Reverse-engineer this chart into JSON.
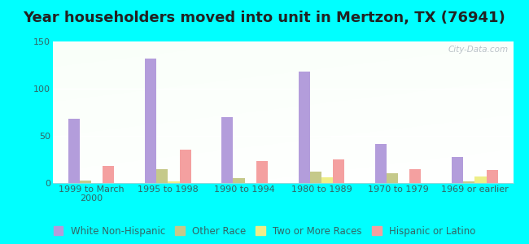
{
  "title": "Year householders moved into unit in Mertzon, TX (76941)",
  "categories": [
    "1999 to March\n2000",
    "1995 to 1998",
    "1990 to 1994",
    "1980 to 1989",
    "1970 to 1979",
    "1969 or earlier"
  ],
  "series": {
    "White Non-Hispanic": [
      68,
      132,
      70,
      118,
      41,
      28
    ],
    "Other Race": [
      3,
      15,
      5,
      12,
      10,
      2
    ],
    "Two or More Races": [
      0,
      2,
      0,
      6,
      0,
      7
    ],
    "Hispanic or Latino": [
      18,
      35,
      23,
      25,
      15,
      14
    ]
  },
  "colors": {
    "White Non-Hispanic": "#b39ddb",
    "Other Race": "#c5c98a",
    "Two or More Races": "#eeee88",
    "Hispanic or Latino": "#f4a0a0"
  },
  "ylim": [
    0,
    150
  ],
  "yticks": [
    0,
    50,
    100,
    150
  ],
  "background_outer": "#00ffff",
  "bar_width": 0.15,
  "title_fontsize": 13,
  "title_color": "#222222",
  "tick_fontsize": 8,
  "tick_color": "#336666",
  "legend_fontsize": 8.5
}
